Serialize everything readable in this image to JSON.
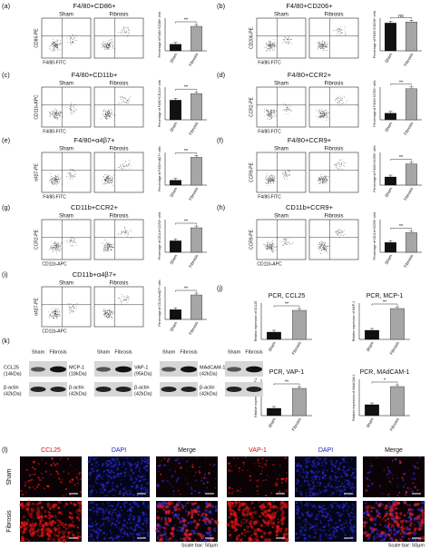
{
  "panels": [
    {
      "label": "(a)",
      "title": "F4/80+CD86+",
      "groups": [
        "Sham",
        "Fibrosis"
      ],
      "y_axis": "CD86-PE",
      "x_axis": "F4/80-FITC",
      "chart": {
        "type": "bar",
        "y_label": "Percentage of F4/80+CD86+ cells",
        "categories": [
          "Sham",
          "Fibrosis"
        ],
        "values": [
          20,
          75
        ],
        "ylim": [
          0,
          100
        ],
        "colors": [
          "#111111",
          "#a6a6a6"
        ],
        "significance": "**"
      }
    },
    {
      "label": "(b)",
      "title": "F4/80+CD206+",
      "groups": [
        "Sham",
        "Fibrosis"
      ],
      "y_axis": "CD206-PE",
      "x_axis": "F4/80-FITC",
      "chart": {
        "type": "bar",
        "y_label": "Percentage of F4/80+CD206+ cells",
        "categories": [
          "Sham",
          "Fibrosis"
        ],
        "values": [
          85,
          88
        ],
        "ylim": [
          0,
          100
        ],
        "colors": [
          "#111111",
          "#a6a6a6"
        ],
        "significance": "ns"
      }
    },
    {
      "label": "(c)",
      "title": "F4/80+CD11b+",
      "groups": [
        "Sham",
        "Fibrosis"
      ],
      "y_axis": "CD11b-APC",
      "x_axis": "F4/80-FITC",
      "chart": {
        "type": "bar",
        "y_label": "Percentage of F4/80+CD11b+ cells",
        "categories": [
          "Sham",
          "Fibrosis"
        ],
        "values": [
          60,
          80
        ],
        "ylim": [
          0,
          100
        ],
        "colors": [
          "#111111",
          "#a6a6a6"
        ],
        "significance": "**"
      }
    },
    {
      "label": "(d)",
      "title": "F4/80+CCR2+",
      "groups": [
        "Sham",
        "Fibrosis"
      ],
      "y_axis": "CCR2-PE",
      "x_axis": "F4/80-FITC",
      "chart": {
        "type": "bar",
        "y_label": "Percentage of F4/80+CCR2+ cells",
        "categories": [
          "Sham",
          "Fibrosis"
        ],
        "values": [
          20,
          95
        ],
        "ylim": [
          0,
          100
        ],
        "colors": [
          "#111111",
          "#a6a6a6"
        ],
        "significance": "**"
      }
    },
    {
      "label": "(e)",
      "title": "F4/80+α4β7+",
      "groups": [
        "Sham",
        "Fibrosis"
      ],
      "y_axis": "α4β7-PE",
      "x_axis": "F4/80-FITC",
      "chart": {
        "type": "bar",
        "y_label": "Percentage of F4/80+α4β7+ cells",
        "categories": [
          "Sham",
          "Fibrosis"
        ],
        "values": [
          15,
          85
        ],
        "ylim": [
          0,
          100
        ],
        "colors": [
          "#111111",
          "#a6a6a6"
        ],
        "significance": "**"
      }
    },
    {
      "label": "(f)",
      "title": "F4/80+CCR9+",
      "groups": [
        "Sham",
        "Fibrosis"
      ],
      "y_axis": "CCR9-PE",
      "x_axis": "F4/80-FITC",
      "chart": {
        "type": "bar",
        "y_label": "Percentage of F4/80+CCR9+ cells",
        "categories": [
          "Sham",
          "Fibrosis"
        ],
        "values": [
          25,
          65
        ],
        "ylim": [
          0,
          100
        ],
        "colors": [
          "#111111",
          "#a6a6a6"
        ],
        "significance": "**"
      }
    },
    {
      "label": "(g)",
      "title": "CD11b+CCR2+",
      "groups": [
        "Sham",
        "Fibrosis"
      ],
      "y_axis": "CCR2-PE",
      "x_axis": "CD11b-APC",
      "chart": {
        "type": "bar",
        "y_label": "Percentage of CD11b+CCR2+ cells",
        "categories": [
          "Sham",
          "Fibrosis"
        ],
        "values": [
          35,
          75
        ],
        "ylim": [
          0,
          100
        ],
        "colors": [
          "#111111",
          "#a6a6a6"
        ],
        "significance": "**"
      }
    },
    {
      "label": "(h)",
      "title": "CD11b+CCR9+",
      "groups": [
        "Sham",
        "Fibrosis"
      ],
      "y_axis": "CCR9-PE",
      "x_axis": "CD11b-APC",
      "chart": {
        "type": "bar",
        "y_label": "Percentage of CD11b+CCR9+ cells",
        "categories": [
          "Sham",
          "Fibrosis"
        ],
        "values": [
          30,
          60
        ],
        "ylim": [
          0,
          100
        ],
        "colors": [
          "#111111",
          "#a6a6a6"
        ],
        "significance": "**"
      }
    },
    {
      "label": "(i)",
      "title": "CD11b+α4β7+",
      "groups": [
        "Sham",
        "Fibrosis"
      ],
      "y_axis": "α4β7-PE",
      "x_axis": "CD11b-APC",
      "chart": {
        "type": "bar",
        "y_label": "Percentage of CD11b+α4β7+ cells",
        "categories": [
          "Sham",
          "Fibrosis"
        ],
        "values": [
          30,
          75
        ],
        "ylim": [
          0,
          100
        ],
        "colors": [
          "#111111",
          "#a6a6a6"
        ],
        "significance": "**"
      }
    }
  ],
  "pcr": {
    "label": "(j)",
    "charts": [
      {
        "type": "bar",
        "title": "PCR, CCL25",
        "y_label": "Relative expression of CCL25",
        "categories": [
          "Sham",
          "Fibrosis"
        ],
        "values": [
          20,
          80
        ],
        "ylim": [
          0,
          100
        ],
        "colors": [
          "#111111",
          "#a6a6a6"
        ],
        "significance": "**"
      },
      {
        "type": "bar",
        "title": "PCR, MCP-1",
        "y_label": "Relative expression of MCP-1",
        "categories": [
          "Sham",
          "Fibrosis"
        ],
        "values": [
          25,
          85
        ],
        "ylim": [
          0,
          100
        ],
        "colors": [
          "#111111",
          "#a6a6a6"
        ],
        "significance": "**"
      },
      {
        "type": "bar",
        "title": "PCR, VAP-1",
        "y_label": "Relative expression of VAP-1",
        "categories": [
          "Sham",
          "Fibrosis"
        ],
        "values": [
          20,
          75
        ],
        "ylim": [
          0,
          100
        ],
        "colors": [
          "#111111",
          "#a6a6a6"
        ],
        "significance": "**"
      },
      {
        "type": "bar",
        "title": "PCR, MAdCAM-1",
        "y_label": "Relative expression of MAdCAM-1",
        "categories": [
          "Sham",
          "Fibrosis"
        ],
        "values": [
          30,
          80
        ],
        "ylim": [
          0,
          100
        ],
        "colors": [
          "#111111",
          "#a6a6a6"
        ],
        "significance": "*"
      }
    ]
  },
  "western": {
    "label": "(k)",
    "groups": [
      {
        "lanes": [
          "Sham",
          "Fibrosis"
        ],
        "target": "CCL25",
        "target_size": "(14kDa)",
        "control": "β-actin",
        "control_size": "(42kDa)"
      },
      {
        "lanes": [
          "Sham",
          "Fibrosis"
        ],
        "target": "MCP-1",
        "target_size": "(18kDa)",
        "control": "β-actin",
        "control_size": "(42kDa)"
      },
      {
        "lanes": [
          "Sham",
          "Fibrosis"
        ],
        "target": "VAP-1",
        "target_size": "(95kDa)",
        "control": "β-actin",
        "control_size": "(42kDa)"
      },
      {
        "lanes": [
          "Sham",
          "Fibrosis"
        ],
        "target": "MAdCAM-1",
        "target_size": "(42kDa)",
        "control": "β-actin",
        "control_size": "(42kDa)"
      }
    ]
  },
  "immunofluorescence": {
    "label": "(l)",
    "columns": [
      "CCL25",
      "DAPI",
      "Merge",
      "VAP-1",
      "DAPI",
      "Merge"
    ],
    "rows": [
      "Sham",
      "Fibrosis"
    ],
    "scale_bars": [
      "Scale bar: 50μm",
      "Scale bar: 50μm"
    ]
  }
}
